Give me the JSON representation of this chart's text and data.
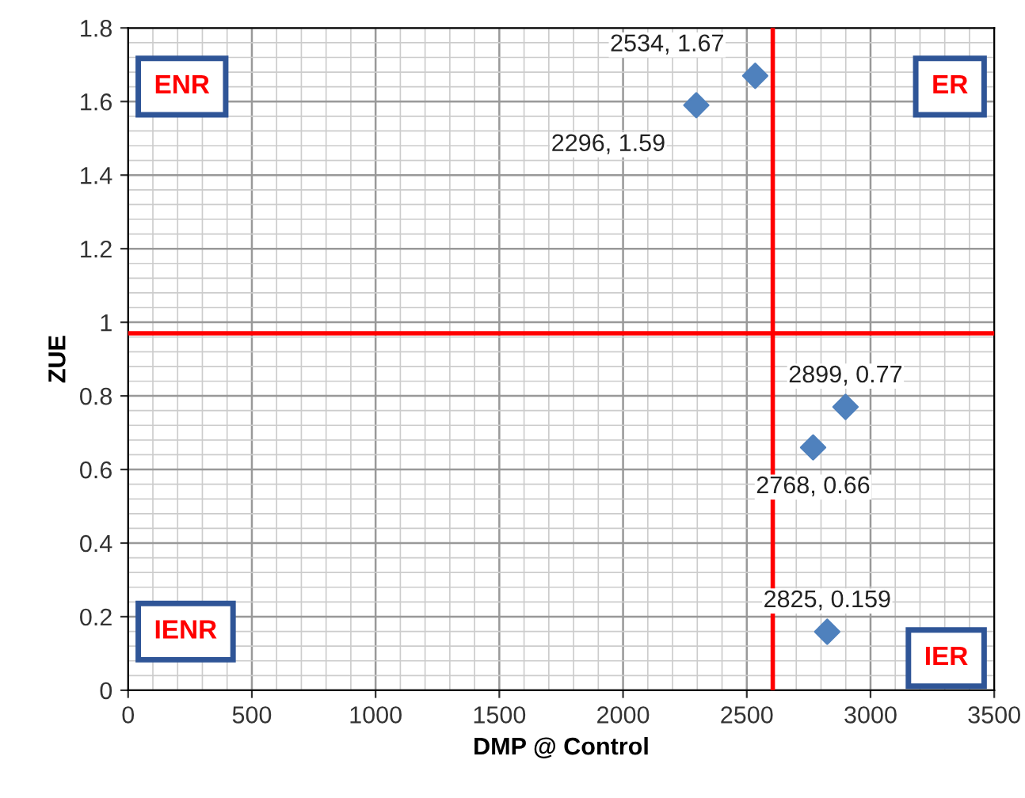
{
  "chart_data": {
    "type": "scatter",
    "xlabel": "DMP @ Control",
    "ylabel": "ZUE",
    "x": [
      2296,
      2534,
      2899,
      2768,
      2825
    ],
    "values": [
      1.59,
      1.67,
      0.77,
      0.66,
      0.159
    ],
    "color": "#4f81bd",
    "marker": "diamond",
    "xlim": [
      0,
      3500
    ],
    "xticks": [
      0,
      500,
      1000,
      1500,
      2000,
      2500,
      3000,
      3500
    ],
    "ylim": [
      0,
      1.8
    ],
    "yticks": [
      0,
      0.2,
      0.4,
      0.6,
      0.8,
      1,
      1.2,
      1.4,
      1.6,
      1.8
    ],
    "grid": true,
    "ref_lines": [
      {
        "axis": "x",
        "value": 2605,
        "color": "#ff0000"
      },
      {
        "axis": "y",
        "value": 0.97,
        "color": "#ff0000"
      }
    ],
    "annotations": [
      "ENR",
      "ER",
      "IENR",
      "IER",
      {
        "text": "2296, 1.59",
        "x": 2296,
        "y": 1.59
      },
      {
        "text": "2534, 1.67",
        "x": 2534,
        "y": 1.67
      },
      {
        "text": "2899, 0.77",
        "x": 2899,
        "y": 0.77
      },
      {
        "text": "2768, 0.66",
        "x": 2768,
        "y": 0.66
      },
      {
        "text": "2825, 0.159",
        "x": 2825,
        "y": 0.159
      }
    ]
  }
}
